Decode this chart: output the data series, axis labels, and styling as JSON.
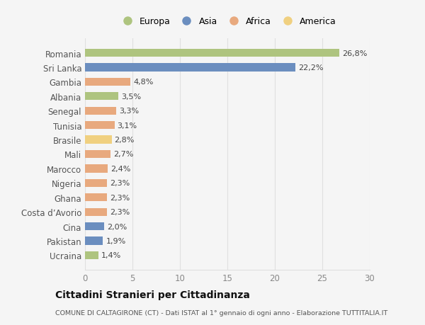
{
  "countries": [
    "Romania",
    "Sri Lanka",
    "Gambia",
    "Albania",
    "Senegal",
    "Tunisia",
    "Brasile",
    "Mali",
    "Marocco",
    "Nigeria",
    "Ghana",
    "Costa d’Avorio",
    "Cina",
    "Pakistan",
    "Ucraina"
  ],
  "values": [
    26.8,
    22.2,
    4.8,
    3.5,
    3.3,
    3.1,
    2.8,
    2.7,
    2.4,
    2.3,
    2.3,
    2.3,
    2.0,
    1.9,
    1.4
  ],
  "labels": [
    "26,8%",
    "22,2%",
    "4,8%",
    "3,5%",
    "3,3%",
    "3,1%",
    "2,8%",
    "2,7%",
    "2,4%",
    "2,3%",
    "2,3%",
    "2,3%",
    "2,0%",
    "1,9%",
    "1,4%"
  ],
  "colors": [
    "#aec47f",
    "#6b8ebf",
    "#e8a97e",
    "#aec47f",
    "#e8a97e",
    "#e8a97e",
    "#f0d080",
    "#e8a97e",
    "#e8a97e",
    "#e8a97e",
    "#e8a97e",
    "#e8a97e",
    "#6b8ebf",
    "#6b8ebf",
    "#aec47f"
  ],
  "legend_labels": [
    "Europa",
    "Asia",
    "Africa",
    "America"
  ],
  "legend_colors": [
    "#aec47f",
    "#6b8ebf",
    "#e8a97e",
    "#f0d080"
  ],
  "title": "Cittadini Stranieri per Cittadinanza",
  "subtitle": "COMUNE DI CALTAGIRONE (CT) - Dati ISTAT al 1° gennaio di ogni anno - Elaborazione TUTTITALIA.IT",
  "xlim": [
    0,
    30
  ],
  "xticks": [
    0,
    5,
    10,
    15,
    20,
    25,
    30
  ],
  "background_color": "#f5f5f5",
  "grid_color": "#e0e0e0"
}
